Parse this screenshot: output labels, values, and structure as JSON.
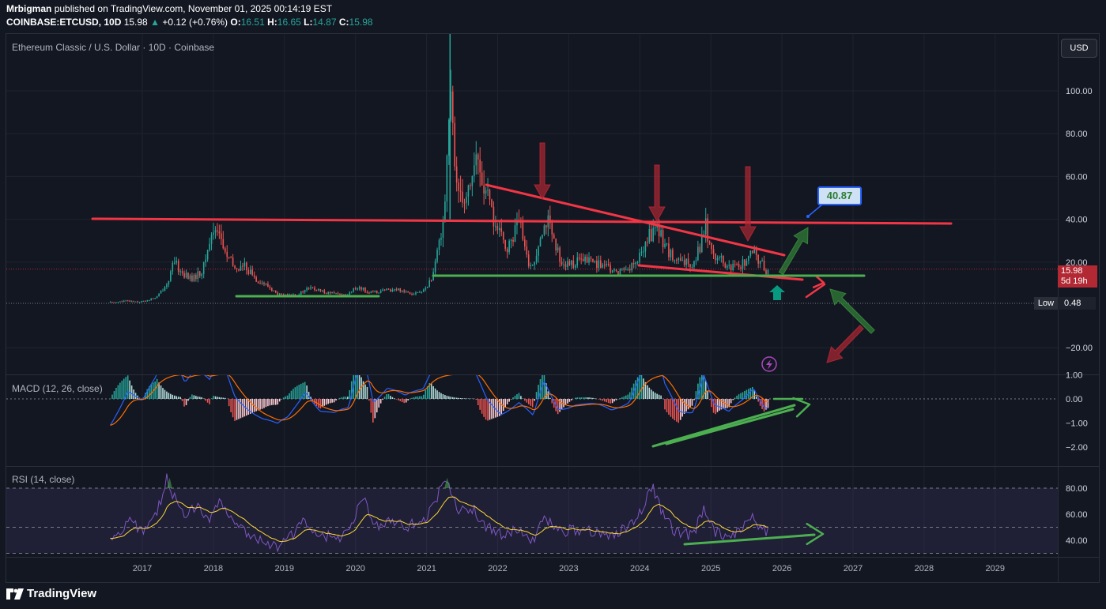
{
  "header": {
    "line1_user": "Mrbigman",
    "line1_rest": "published on TradingView.com, November 01, 2025 00:14:19 EST",
    "symbol": "COINBASE:ETCUSD, 10D",
    "last": "15.98",
    "change": "+0.12 (+0.76%)",
    "o_key": "O:",
    "o_val": "16.51",
    "h_key": "H:",
    "h_val": "16.65",
    "l_key": "L:",
    "l_val": "14.87",
    "c_key": "C:",
    "c_val": "15.98"
  },
  "colors": {
    "background": "#131722",
    "bull": "#26a69a",
    "bear": "#ef5350",
    "trend_red": "#f23645",
    "trend_green": "#4caf50",
    "macd_line": "#2962ff",
    "signal_line": "#ff6d00",
    "rsi_line": "#7e57c2",
    "rsi_ma": "#fdd835"
  },
  "icons": {
    "lightning": "lightning-icon",
    "brand": "tradingview-logo-icon",
    "arrow_up": "up-arrow-icon"
  },
  "chart_data": [
    {
      "type": "candlestick",
      "title": "Ethereum Classic / U.S. Dollar · 10D · Coinbase",
      "currency_button": "USD",
      "x_axis": [
        "2017",
        "2018",
        "2019",
        "2020",
        "2021",
        "2022",
        "2023",
        "2024",
        "2025",
        "2026",
        "2027",
        "2028",
        "2029"
      ],
      "y_axis_labels": [
        "100.00",
        "80.00",
        "60.00",
        "40.00",
        "20.00",
        "−20.00"
      ],
      "ylim": [
        -24,
        122
      ],
      "scale": "linear",
      "grid": true,
      "last_price": "15.98",
      "countdown": "5d 19h",
      "low_label": "Low",
      "low_value": "0.48",
      "callout_value": "40.87",
      "price_path": [
        [
          2016.55,
          1.2
        ],
        [
          2016.8,
          1.8
        ],
        [
          2017.0,
          1.5
        ],
        [
          2017.2,
          3.5
        ],
        [
          2017.35,
          10
        ],
        [
          2017.45,
          20
        ],
        [
          2017.55,
          15
        ],
        [
          2017.7,
          12
        ],
        [
          2017.85,
          16
        ],
        [
          2017.95,
          30
        ],
        [
          2018.05,
          38
        ],
        [
          2018.15,
          25
        ],
        [
          2018.3,
          17
        ],
        [
          2018.45,
          18
        ],
        [
          2018.6,
          12
        ],
        [
          2018.75,
          9
        ],
        [
          2018.9,
          5
        ],
        [
          2019.0,
          4.4
        ],
        [
          2019.2,
          5
        ],
        [
          2019.35,
          8
        ],
        [
          2019.5,
          6.5
        ],
        [
          2019.7,
          5.2
        ],
        [
          2019.85,
          4.5
        ],
        [
          2020.05,
          8.5
        ],
        [
          2020.2,
          5.5
        ],
        [
          2020.4,
          6.8
        ],
        [
          2020.6,
          7.2
        ],
        [
          2020.8,
          5.5
        ],
        [
          2020.95,
          6.2
        ],
        [
          2021.1,
          14
        ],
        [
          2021.25,
          45
        ],
        [
          2021.33,
          100
        ],
        [
          2021.4,
          60
        ],
        [
          2021.55,
          50
        ],
        [
          2021.7,
          68
        ],
        [
          2021.85,
          50
        ],
        [
          2022.0,
          34
        ],
        [
          2022.15,
          26
        ],
        [
          2022.3,
          40
        ],
        [
          2022.4,
          22
        ],
        [
          2022.5,
          17
        ],
        [
          2022.6,
          35
        ],
        [
          2022.7,
          40
        ],
        [
          2022.8,
          27
        ],
        [
          2022.95,
          18
        ],
        [
          2023.1,
          20
        ],
        [
          2023.3,
          21
        ],
        [
          2023.5,
          18
        ],
        [
          2023.65,
          15
        ],
        [
          2023.8,
          17
        ],
        [
          2023.95,
          19
        ],
        [
          2024.1,
          30
        ],
        [
          2024.2,
          36
        ],
        [
          2024.3,
          32
        ],
        [
          2024.45,
          22
        ],
        [
          2024.6,
          19
        ],
        [
          2024.75,
          20
        ],
        [
          2024.85,
          28
        ],
        [
          2024.92,
          38
        ],
        [
          2025.0,
          26
        ],
        [
          2025.1,
          22
        ],
        [
          2025.25,
          17
        ],
        [
          2025.4,
          18
        ],
        [
          2025.5,
          21
        ],
        [
          2025.6,
          24
        ],
        [
          2025.7,
          20
        ],
        [
          2025.78,
          16
        ],
        [
          2025.83,
          15.98
        ]
      ]
    },
    {
      "type": "histogram",
      "title": "MACD (12, 26, close)",
      "y_axis_labels": [
        "1.00",
        "0.00",
        "−1.00",
        "−2.00"
      ],
      "ylim": [
        -2.8,
        1.05
      ]
    },
    {
      "type": "line",
      "title": "RSI (14, close)",
      "y_axis_labels": [
        "80.00",
        "60.00",
        "40.00"
      ],
      "ylim": [
        28,
        88
      ],
      "band": [
        30,
        80
      ],
      "rsi_path": [
        [
          2016.55,
          38
        ],
        [
          2016.8,
          55
        ],
        [
          2017.0,
          48
        ],
        [
          2017.2,
          60
        ],
        [
          2017.35,
          88
        ],
        [
          2017.45,
          72
        ],
        [
          2017.6,
          60
        ],
        [
          2017.75,
          66
        ],
        [
          2017.95,
          58
        ],
        [
          2018.1,
          70
        ],
        [
          2018.3,
          52
        ],
        [
          2018.5,
          46
        ],
        [
          2018.7,
          40
        ],
        [
          2018.9,
          36
        ],
        [
          2019.05,
          40
        ],
        [
          2019.3,
          55
        ],
        [
          2019.5,
          45
        ],
        [
          2019.7,
          42
        ],
        [
          2019.9,
          44
        ],
        [
          2020.1,
          75
        ],
        [
          2020.25,
          50
        ],
        [
          2020.45,
          56
        ],
        [
          2020.7,
          50
        ],
        [
          2020.95,
          55
        ],
        [
          2021.1,
          68
        ],
        [
          2021.28,
          88
        ],
        [
          2021.45,
          62
        ],
        [
          2021.65,
          64
        ],
        [
          2021.85,
          50
        ],
        [
          2022.05,
          44
        ],
        [
          2022.3,
          48
        ],
        [
          2022.5,
          40
        ],
        [
          2022.65,
          58
        ],
        [
          2022.85,
          46
        ],
        [
          2023.1,
          48
        ],
        [
          2023.35,
          46
        ],
        [
          2023.6,
          44
        ],
        [
          2023.85,
          50
        ],
        [
          2024.05,
          66
        ],
        [
          2024.18,
          82
        ],
        [
          2024.35,
          56
        ],
        [
          2024.55,
          44
        ],
        [
          2024.75,
          45
        ],
        [
          2024.9,
          63
        ],
        [
          2025.05,
          46
        ],
        [
          2025.25,
          42
        ],
        [
          2025.45,
          50
        ],
        [
          2025.6,
          57
        ],
        [
          2025.75,
          47
        ],
        [
          2025.83,
          46
        ]
      ]
    }
  ],
  "annotations": {
    "brand_text": "TradingView"
  }
}
